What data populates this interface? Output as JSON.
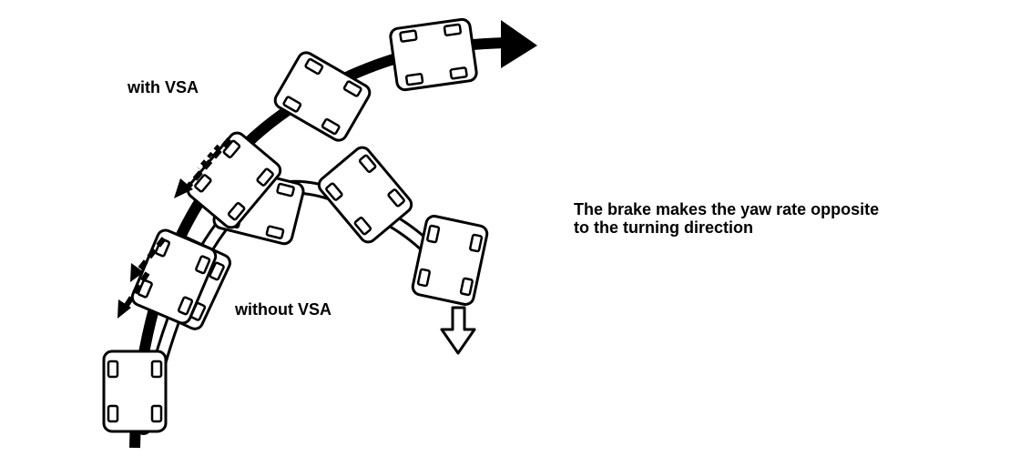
{
  "labels": {
    "with_vsa": "with VSA",
    "without_vsa": "without VSA",
    "description_line1": "The brake makes the yaw rate opposite",
    "description_line2": "to the turning direction"
  },
  "colors": {
    "ink": "#000000",
    "background": "#ffffff"
  }
}
